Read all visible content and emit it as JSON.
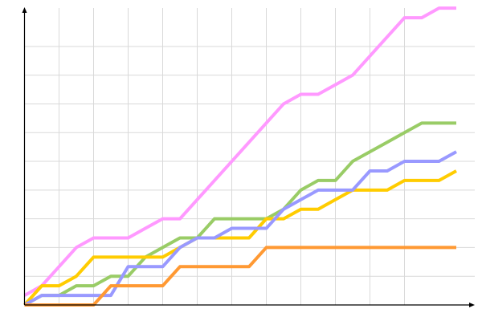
{
  "chart_data": {
    "type": "line",
    "title": "",
    "xlabel": "",
    "ylabel": "",
    "xlim": [
      0,
      26
    ],
    "ylim": [
      0,
      31
    ],
    "grid": true,
    "x_grid_step": 2,
    "y_grid_step": 3,
    "x": [
      0,
      1,
      2,
      3,
      4,
      5,
      6,
      7,
      8,
      9,
      10,
      11,
      12,
      13,
      14,
      15,
      16,
      17,
      18,
      19,
      20,
      21,
      22,
      23,
      24,
      25
    ],
    "series": [
      {
        "color": "#ff99ff",
        "values": [
          1,
          2,
          4,
          6,
          7,
          7,
          7,
          8,
          9,
          9,
          11,
          13,
          15,
          17,
          19,
          21,
          22,
          22,
          23,
          24,
          26,
          28,
          30,
          30,
          31,
          31
        ]
      },
      {
        "color": "#99cc66",
        "values": [
          0,
          1,
          1,
          2,
          2,
          3,
          3,
          5,
          6,
          7,
          7,
          9,
          9,
          9,
          9,
          10,
          12,
          13,
          13,
          15,
          16,
          17,
          18,
          19,
          19,
          19
        ]
      },
      {
        "color": "#ffcc00",
        "values": [
          0,
          2,
          2,
          3,
          5,
          5,
          5,
          5,
          5,
          6,
          7,
          7,
          7,
          7,
          9,
          9,
          10,
          10,
          11,
          12,
          12,
          12,
          13,
          13,
          13,
          14
        ]
      },
      {
        "color": "#9999ff",
        "values": [
          0,
          1,
          1,
          1,
          1,
          1,
          4,
          4,
          4,
          6,
          7,
          7,
          8,
          8,
          8,
          10,
          11,
          12,
          12,
          12,
          14,
          14,
          15,
          15,
          15,
          16
        ]
      },
      {
        "color": "#ff9933",
        "values": [
          0,
          0,
          0,
          0,
          0,
          2,
          2,
          2,
          2,
          4,
          4,
          4,
          4,
          4,
          6,
          6,
          6,
          6,
          6,
          6,
          6,
          6,
          6,
          6,
          6,
          6
        ]
      }
    ]
  }
}
